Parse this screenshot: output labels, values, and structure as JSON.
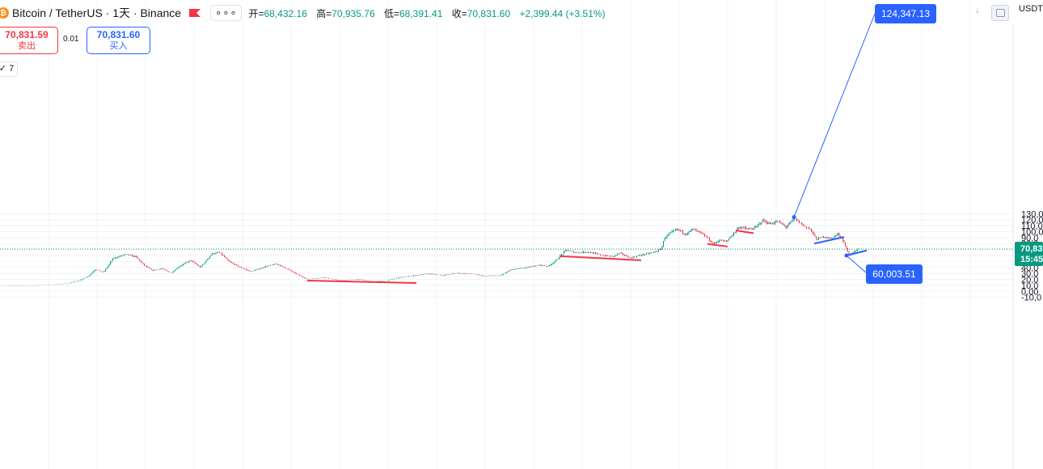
{
  "header": {
    "symbol_icon": "bitcoin-icon",
    "symbol_title": "Bitcoin / TetherUS · 1天 · Binance",
    "flag_icon": "flag-icon",
    "more_icon": "more-dots-icon",
    "open_label": "开=",
    "open_value": "68,432.16",
    "high_label": "高=",
    "high_value": "70,935.76",
    "low_label": "低=",
    "low_value": "68,391.41",
    "close_label": "收=",
    "close_value": "70,831.60",
    "change": "+2,399.44 (+3.51%)"
  },
  "trade": {
    "sell_price": "70,831.59",
    "sell_label": "卖出",
    "spread": "0.01",
    "buy_price": "70,831.60",
    "buy_label": "买入"
  },
  "indicator_toggle": "✓ 7",
  "currency": "USDT",
  "arrow_icon": "down-arrow-icon",
  "colors": {
    "up": "#089981",
    "down": "#f23645",
    "accent": "#2962ff"
  },
  "chart_data": {
    "type": "candlestick",
    "y_axis": {
      "ticks": [
        130000,
        120000,
        110000,
        100000,
        90000,
        80000,
        70000,
        60000,
        50000,
        40000,
        30000,
        20000,
        10000,
        0,
        -10000
      ],
      "tick_labels": [
        "130,0",
        "120,0",
        "110,0",
        "100,0",
        "90,0",
        "80,0",
        "70,0",
        "60,0",
        "50,0",
        "40,0",
        "30,0",
        "20,0",
        "10,0",
        "0.00",
        "-10,0"
      ],
      "range": [
        -10000,
        131000
      ]
    },
    "grid": true,
    "last_price": 70831.6,
    "last_price_label": "70,83",
    "countdown": "15:45",
    "series_path": [
      [
        0,
        9000
      ],
      [
        35,
        9500
      ],
      [
        60,
        10500
      ],
      [
        85,
        13500
      ],
      [
        100,
        19000
      ],
      [
        110,
        26000
      ],
      [
        118,
        37000
      ],
      [
        128,
        32000
      ],
      [
        140,
        55000
      ],
      [
        155,
        62000
      ],
      [
        168,
        58000
      ],
      [
        178,
        44000
      ],
      [
        188,
        35000
      ],
      [
        200,
        38000
      ],
      [
        212,
        31000
      ],
      [
        222,
        42000
      ],
      [
        236,
        52000
      ],
      [
        248,
        40000
      ],
      [
        262,
        63000
      ],
      [
        272,
        65000
      ],
      [
        283,
        50000
      ],
      [
        296,
        41000
      ],
      [
        310,
        33000
      ],
      [
        325,
        40000
      ],
      [
        342,
        46000
      ],
      [
        355,
        38000
      ],
      [
        365,
        30000
      ],
      [
        380,
        20500
      ],
      [
        400,
        23000
      ],
      [
        420,
        18500
      ],
      [
        445,
        20000
      ],
      [
        460,
        16500
      ],
      [
        478,
        17500
      ],
      [
        490,
        22000
      ],
      [
        510,
        26000
      ],
      [
        530,
        29500
      ],
      [
        548,
        27000
      ],
      [
        565,
        30500
      ],
      [
        585,
        29000
      ],
      [
        600,
        25500
      ],
      [
        620,
        27000
      ],
      [
        632,
        36000
      ],
      [
        650,
        40000
      ],
      [
        668,
        44000
      ],
      [
        678,
        42000
      ],
      [
        688,
        52000
      ],
      [
        700,
        69000
      ],
      [
        712,
        65000
      ],
      [
        728,
        66000
      ],
      [
        742,
        61000
      ],
      [
        758,
        58000
      ],
      [
        766,
        64000
      ],
      [
        780,
        56000
      ],
      [
        794,
        61000
      ],
      [
        808,
        65000
      ],
      [
        818,
        71000
      ],
      [
        822,
        90000
      ],
      [
        830,
        98000
      ],
      [
        838,
        104000
      ],
      [
        848,
        96000
      ],
      [
        857,
        104000
      ],
      [
        866,
        98000
      ],
      [
        875,
        90000
      ],
      [
        882,
        79000
      ],
      [
        890,
        86000
      ],
      [
        898,
        83000
      ],
      [
        906,
        95000
      ],
      [
        914,
        108000
      ],
      [
        925,
        104000
      ],
      [
        934,
        106000
      ],
      [
        943,
        119000
      ],
      [
        952,
        113000
      ],
      [
        962,
        117000
      ],
      [
        972,
        108000
      ],
      [
        983,
        122000
      ],
      [
        993,
        111000
      ],
      [
        1002,
        104000
      ],
      [
        1010,
        87000
      ],
      [
        1020,
        92000
      ],
      [
        1028,
        88000
      ],
      [
        1036,
        96000
      ],
      [
        1042,
        88000
      ],
      [
        1046,
        74000
      ],
      [
        1050,
        62000
      ],
      [
        1058,
        67000
      ],
      [
        1062,
        70830
      ]
    ],
    "series_path_units": "bar-position on time axis (left to right), price in USDT",
    "annotations": [
      {
        "type": "price-label",
        "text": "124,347.13",
        "price": 124347.13,
        "point": [
          982,
          124347
        ]
      },
      {
        "type": "price-label",
        "text": "60,003.51",
        "price": 60003.51,
        "point": [
          1047,
          60003
        ]
      }
    ],
    "trendlines": [
      {
        "color": "red",
        "points": [
          [
            380,
            18000
          ],
          [
            515,
            14000
          ]
        ]
      },
      {
        "color": "red",
        "points": [
          [
            692,
            59000
          ],
          [
            793,
            52000
          ]
        ]
      },
      {
        "color": "red",
        "points": [
          [
            875,
            79500
          ],
          [
            900,
            75000
          ]
        ]
      },
      {
        "color": "red",
        "points": [
          [
            910,
            102000
          ],
          [
            932,
            97500
          ]
        ]
      },
      {
        "color": "blue",
        "points": [
          [
            1007,
            80000
          ],
          [
            1044,
            91000
          ]
        ]
      },
      {
        "color": "blue",
        "points": [
          [
            1047,
            60000
          ],
          [
            1072,
            68500
          ]
        ]
      }
    ]
  }
}
